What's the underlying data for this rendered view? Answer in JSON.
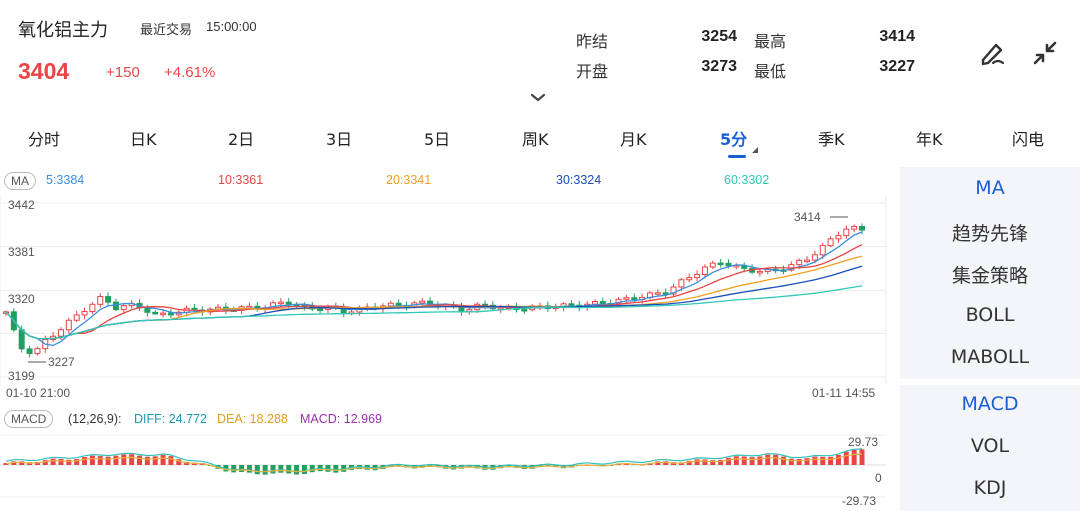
{
  "header": {
    "title": "氧化铝主力",
    "trade_label": "最近交易",
    "trade_time": "15:00:00",
    "price": "3404",
    "change": "+150",
    "change_pct": "+4.61%",
    "stats": {
      "prev_settle_label": "昨结",
      "prev_settle": "3254",
      "high_label": "最高",
      "high": "3414",
      "open_label": "开盘",
      "open": "3273",
      "low_label": "最低",
      "low": "3227"
    }
  },
  "tabs": [
    {
      "label": "分时"
    },
    {
      "label": "日K"
    },
    {
      "label": "2日"
    },
    {
      "label": "3日"
    },
    {
      "label": "5日"
    },
    {
      "label": "周K"
    },
    {
      "label": "月K"
    },
    {
      "label": "5分"
    },
    {
      "label": "季K"
    },
    {
      "label": "年K"
    },
    {
      "label": "闪电"
    }
  ],
  "active_tab": "5分",
  "ma_bar": {
    "tag": "MA",
    "ma5": "5:3384",
    "ma10": "10:3361",
    "ma20": "20:3341",
    "ma30": "30:3324",
    "ma60": "60:3302"
  },
  "colors": {
    "up": "#e84545",
    "down": "#20a060",
    "ma5": "#3b8ee0",
    "ma10": "#e84545",
    "ma20": "#f0a020",
    "ma30": "#1a4fb8",
    "ma60": "#30c8b8",
    "accent": "#1a5fd6"
  },
  "main_chart": {
    "y_ticks": [
      "3442",
      "3381",
      "3320",
      "3199"
    ],
    "high_marker": "3414",
    "low_marker": "3227",
    "x_start": "01-10 21:00",
    "x_end": "01-11 14:55",
    "y_range": [
      3199,
      3442
    ]
  },
  "macd_bar": {
    "tag": "MACD",
    "params": "(12,26,9):",
    "diff": "DIFF: 24.772",
    "dea": "DEA: 18.288",
    "macd": "MACD: 12.969",
    "y_top": "29.73",
    "y_zero": "0",
    "y_bottom": "-29.73"
  },
  "side_panel": {
    "main_items": [
      "MA",
      "趋势先锋",
      "集金策略",
      "BOLL",
      "MABOLL"
    ],
    "sub_items": [
      "MACD",
      "VOL",
      "KDJ"
    ]
  },
  "chart_data": {
    "type": "candlestick",
    "x_start": "01-10 21:00",
    "x_end": "01-11 14:55",
    "ylim": [
      3199,
      3442
    ],
    "high": 3414,
    "low": 3227,
    "ma": {
      "MA5": 3384,
      "MA10": 3361,
      "MA20": 3341,
      "MA30": 3324,
      "MA60": 3302
    },
    "macd": {
      "params": [
        12,
        26,
        9
      ],
      "DIFF": 24.772,
      "DEA": 18.288,
      "MACD": 12.969,
      "ylim": [
        -29.73,
        29.73
      ]
    }
  }
}
